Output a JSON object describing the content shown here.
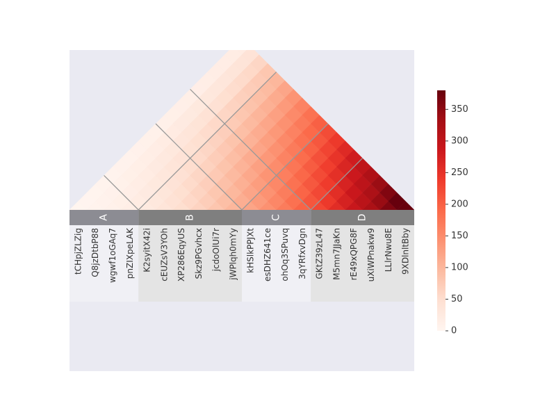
{
  "chart_data": {
    "type": "heatmap",
    "variant": "triangular-lower-rotated",
    "labels": [
      "tCHpjZLZig",
      "Q8jzDtbP88",
      "wgwf1oGAq7",
      "pnZIXpeLAK",
      "K2syitX42i",
      "cEUZsV3YOh",
      "XP286EqyUS",
      "Skz9PGvhcx",
      "jcdoOlUi7r",
      "jWPlqh0mYy",
      "kHSlkPPJXt",
      "esDHZ641ce",
      "ohOq3SPuvq",
      "3qYRfxvDgn",
      "GKtZ39zL47",
      "M5mn7JJaKn",
      "rE49xQPG8F",
      "uXiWPnakw9",
      "LLlrNwu8E",
      "9XDlnltBby"
    ],
    "groups": [
      {
        "name": "A",
        "count": 4
      },
      {
        "name": "B",
        "count": 6
      },
      {
        "name": "C",
        "count": 4
      },
      {
        "name": "D",
        "count": 6
      }
    ],
    "value_rule": "value(i,j) ≈ 1 + i + j + i*j (i,j = 0-based label indices)",
    "colorbar": {
      "colormap": "Reds",
      "min": 0,
      "max": 380,
      "ticks": [
        0,
        50,
        100,
        150,
        200,
        250,
        300,
        350
      ]
    },
    "colors": {
      "background": "#eaeaf2",
      "group_band_dark": "#8c8c8c",
      "group_band_light": "#e4e4e4",
      "label_bg_light": "#f0f0f5",
      "label_bg_dark": "#e4e4e4",
      "group_divider": "#999999"
    }
  }
}
